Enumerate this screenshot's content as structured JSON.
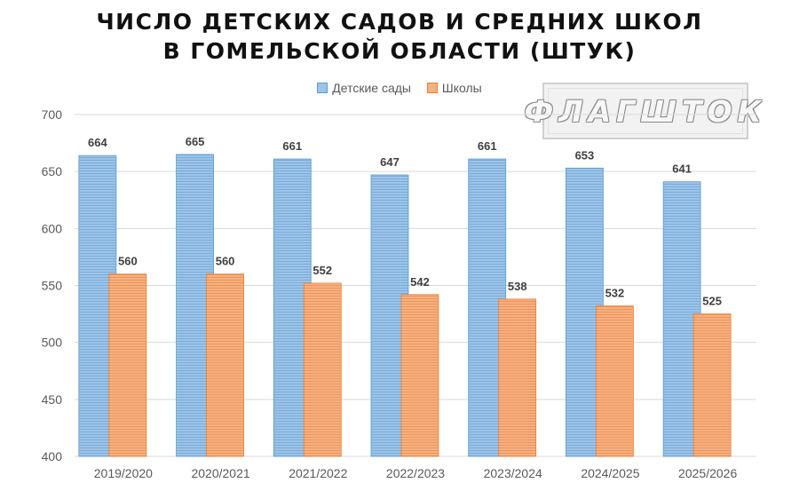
{
  "title_lines": [
    "ЧИСЛО ДЕТСКИХ САДОВ И СРЕДНИХ ШКОЛ",
    "В ГОМЕЛЬСКОЙ ОБЛАСТИ (ШТУК)"
  ],
  "watermark": "ФЛАГШТОК",
  "colors": {
    "kindergartens": "#9dc3e6",
    "kindergartens_stripe": "#5b9bd5",
    "schools": "#f4b183",
    "schools_stripe": "#ed7d31",
    "grid": "#d9d9d9",
    "axis_text": "#595959"
  },
  "chart_data": {
    "type": "bar",
    "title": "ЧИСЛО ДЕТСКИХ САДОВ И СРЕДНИХ ШКОЛ В ГОМЕЛЬСКОЙ ОБЛАСТИ (ШТУК)",
    "categories": [
      "2019/2020",
      "2020/2021",
      "2021/2022",
      "2022/2023",
      "2023/2024",
      "2024/2025",
      "2025/2026"
    ],
    "series": [
      {
        "name": "Детские сады",
        "values": [
          664,
          665,
          661,
          647,
          661,
          653,
          641
        ]
      },
      {
        "name": "Школы",
        "values": [
          560,
          560,
          552,
          542,
          538,
          532,
          525
        ]
      }
    ],
    "ylim": [
      400,
      700
    ],
    "yticks": [
      400,
      450,
      500,
      550,
      600,
      650,
      700
    ],
    "grid": true,
    "legend_position": "top"
  }
}
